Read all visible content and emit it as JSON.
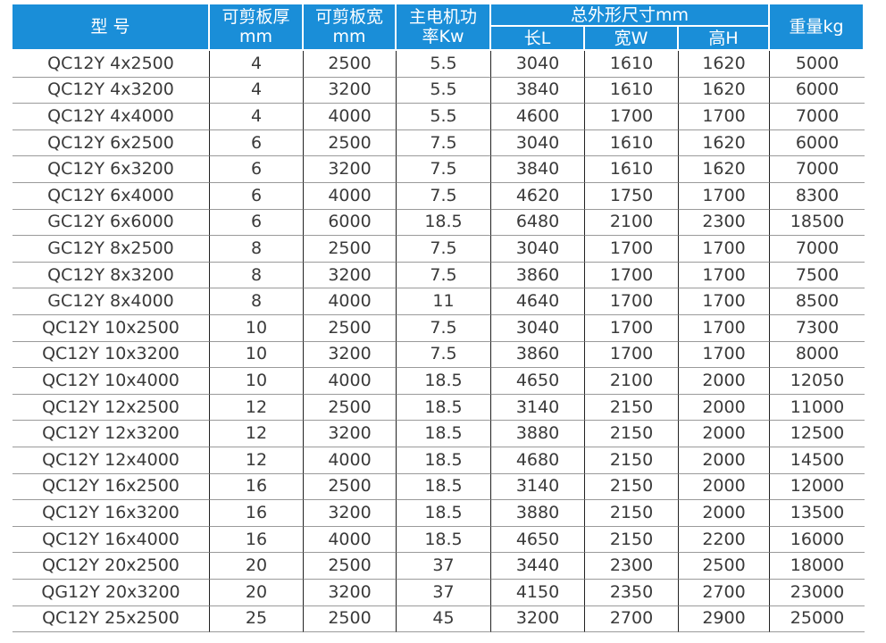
{
  "header": {
    "cells": [
      {
        "lines": [
          "型 号"
        ]
      },
      {
        "lines": [
          "可剪板厚",
          "mm"
        ]
      },
      {
        "lines": [
          "可剪板宽",
          "mm"
        ]
      },
      {
        "lines": [
          "主电机功",
          "率Kw"
        ]
      },
      {
        "lines": [
          "总外形尺寸mm"
        ],
        "sub": [
          "长L",
          "宽W",
          "高H"
        ]
      },
      {
        "lines": [
          "重量kg"
        ]
      }
    ]
  },
  "table": {
    "rows": [
      [
        "QC12Y 4x2500",
        "4",
        "2500",
        "5.5",
        "3040",
        "1610",
        "1620",
        "5000"
      ],
      [
        "QC12Y 4x3200",
        "4",
        "3200",
        "5.5",
        "3840",
        "1610",
        "1620",
        "6000"
      ],
      [
        "QC12Y 4x4000",
        "4",
        "4000",
        "5.5",
        "4600",
        "1700",
        "1700",
        "7000"
      ],
      [
        "QC12Y 6x2500",
        "6",
        "2500",
        "7.5",
        "3040",
        "1610",
        "1620",
        "6000"
      ],
      [
        "QC12Y 6x3200",
        "6",
        "3200",
        "7.5",
        "3840",
        "1610",
        "1620",
        "7000"
      ],
      [
        "QC12Y 6x4000",
        "6",
        "4000",
        "7.5",
        "4620",
        "1750",
        "1700",
        "8300"
      ],
      [
        "GC12Y 6x6000",
        "6",
        "6000",
        "18.5",
        "6480",
        "2100",
        "2300",
        "18500"
      ],
      [
        "GC12Y 8x2500",
        "8",
        "2500",
        "7.5",
        "3040",
        "1700",
        "1700",
        "7000"
      ],
      [
        "QC12Y 8x3200",
        "8",
        "3200",
        "7.5",
        "3860",
        "1700",
        "1700",
        "7500"
      ],
      [
        "GC12Y 8x4000",
        "8",
        "4000",
        "11",
        "4640",
        "1700",
        "1700",
        "8500"
      ],
      [
        "QC12Y 10x2500",
        "10",
        "2500",
        "7.5",
        "3040",
        "1700",
        "1700",
        "7300"
      ],
      [
        "QC12Y 10x3200",
        "10",
        "3200",
        "7.5",
        "3860",
        "1700",
        "1700",
        "8000"
      ],
      [
        "QC12Y 10x4000",
        "10",
        "4000",
        "18.5",
        "4650",
        "2100",
        "2000",
        "12050"
      ],
      [
        "QC12Y 12x2500",
        "12",
        "2500",
        "18.5",
        "3140",
        "2150",
        "2000",
        "11000"
      ],
      [
        "QC12Y 12x3200",
        "12",
        "3200",
        "18.5",
        "3880",
        "2150",
        "2000",
        "12500"
      ],
      [
        "QC12Y 12x4000",
        "12",
        "4000",
        "18.5",
        "4680",
        "2150",
        "2000",
        "14500"
      ],
      [
        "QC12Y 16x2500",
        "16",
        "2500",
        "18.5",
        "3140",
        "2150",
        "2000",
        "12000"
      ],
      [
        "QC12Y 16x3200",
        "16",
        "3200",
        "18.5",
        "3880",
        "2150",
        "2000",
        "13500"
      ],
      [
        "QC12Y 16x4000",
        "16",
        "4000",
        "18.5",
        "4650",
        "2150",
        "2200",
        "16000"
      ],
      [
        "QC12Y 20x2500",
        "20",
        "2500",
        "37",
        "3440",
        "2300",
        "2500",
        "18000"
      ],
      [
        "QG12Y 20x3200",
        "20",
        "3200",
        "37",
        "4150",
        "2350",
        "2700",
        "23000"
      ],
      [
        "QC12Y 25x2500",
        "25",
        "2500",
        "45",
        "3200",
        "2700",
        "2900",
        "25000"
      ]
    ]
  }
}
